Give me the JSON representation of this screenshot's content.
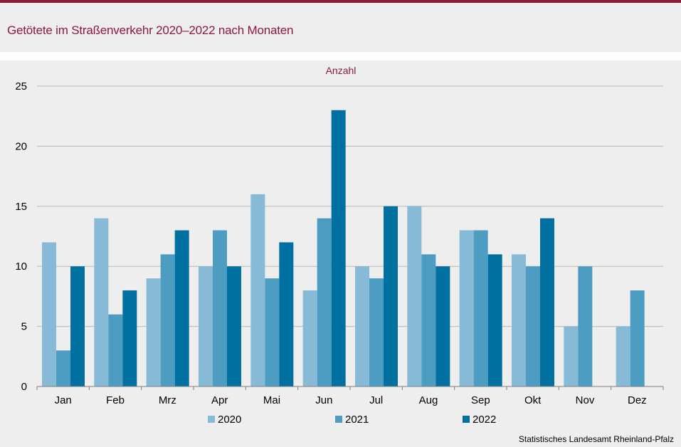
{
  "header": {
    "title": "Getötete im Straßenverkehr 2020–2022 nach Monaten"
  },
  "footer": {
    "source": "Statistisches Landesamt  Rheinland-Pfalz"
  },
  "colors": {
    "brand": "#8b1a3a",
    "series": [
      "#86bad6",
      "#4d9dc3",
      "#0070a0"
    ],
    "grid": "#b8b8b8",
    "background": "#eeeeee"
  },
  "chart_data": {
    "type": "bar",
    "title": "Getötete im Straßenverkehr 2020–2022 nach Monaten",
    "ylabel": "Anzahl",
    "xlabel": "",
    "ylim": [
      0,
      25
    ],
    "yticks": [
      0,
      5,
      10,
      15,
      20,
      25
    ],
    "grid": true,
    "legend_position": "bottom",
    "categories": [
      "Jan",
      "Feb",
      "Mrz",
      "Apr",
      "Mai",
      "Jun",
      "Jul",
      "Aug",
      "Sep",
      "Okt",
      "Nov",
      "Dez"
    ],
    "series": [
      {
        "name": "2020",
        "values": [
          12,
          14,
          9,
          10,
          16,
          8,
          10,
          15,
          13,
          11,
          5,
          5
        ]
      },
      {
        "name": "2021",
        "values": [
          3,
          6,
          11,
          13,
          9,
          14,
          9,
          11,
          13,
          10,
          10,
          8
        ]
      },
      {
        "name": "2022",
        "values": [
          10,
          8,
          13,
          10,
          12,
          23,
          15,
          10,
          11,
          14,
          null,
          null
        ]
      }
    ]
  }
}
